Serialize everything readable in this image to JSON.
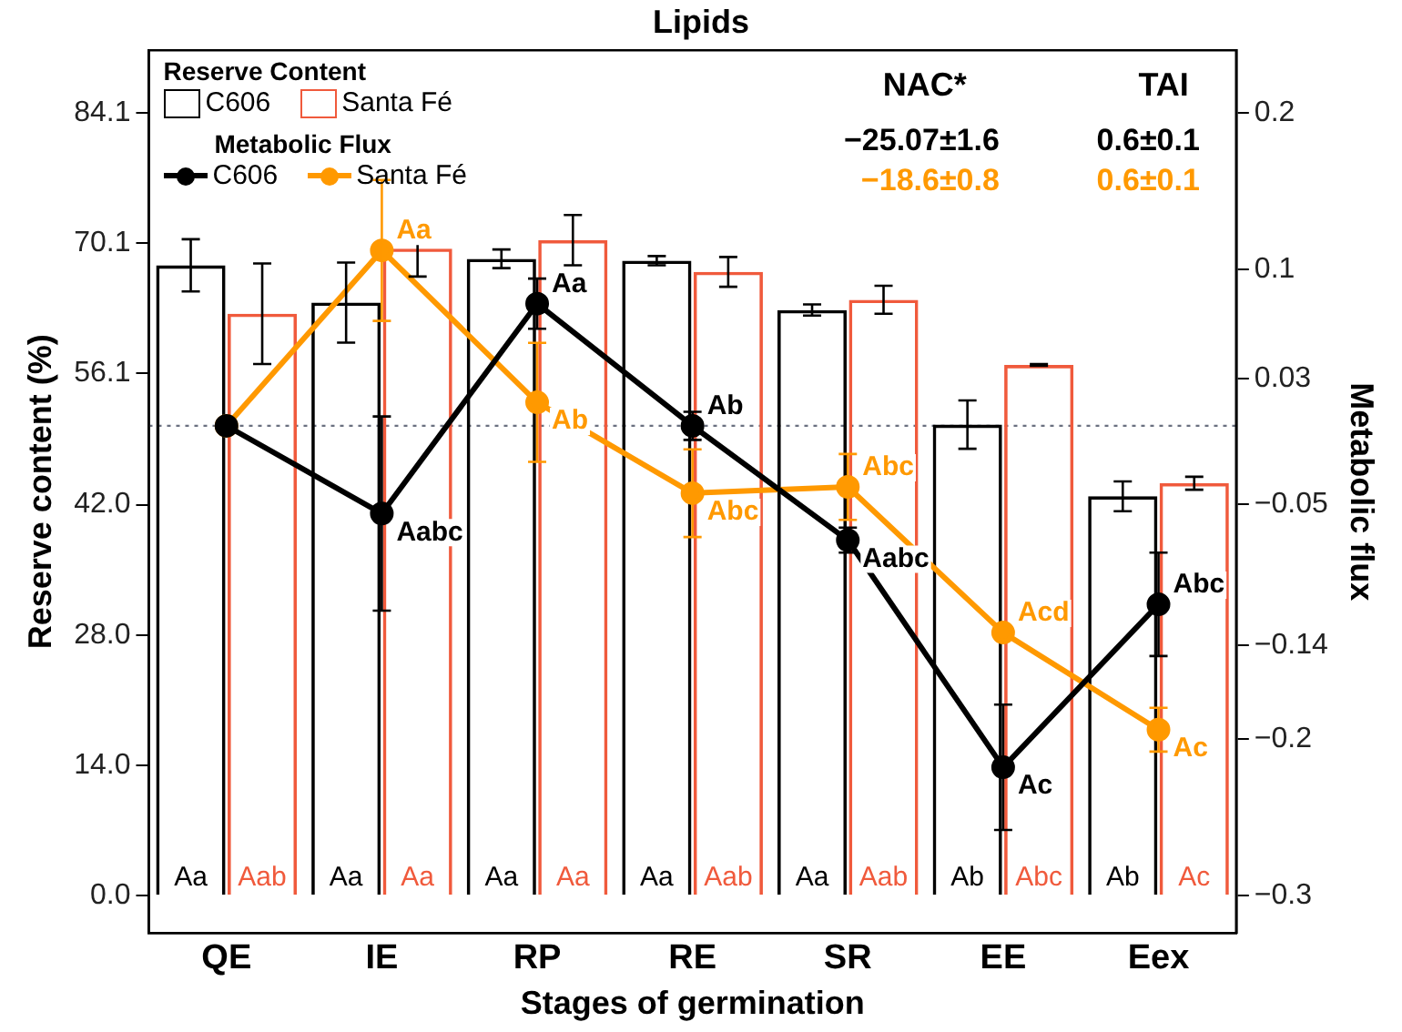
{
  "chart_data": {
    "type": "bar",
    "title": "Lipids",
    "xlabel": "Stages of germination",
    "ylabel": "Reserve content (%)",
    "y2label": "Metabolic flux",
    "legend_title": "Reserve Content",
    "categories": [
      "QE",
      "IE",
      "RP",
      "RE",
      "SR",
      "EE",
      "Eex"
    ],
    "series": [
      {
        "name": "C606",
        "color": "#000000",
        "values": [
          67.7,
          63.7,
          68.4,
          68.2,
          62.9,
          50.6,
          42.9
        ],
        "errors": [
          2.8,
          4.3,
          1.0,
          0.5,
          0.6,
          2.6,
          1.6
        ],
        "value_labels": [
          "Aa",
          "Aa",
          "Aa",
          "Aa",
          "Aa",
          "Ab",
          "Ab"
        ]
      },
      {
        "name": "Santa Fé",
        "color": "#f05a3c",
        "values": [
          62.5,
          69.5,
          70.4,
          67.0,
          64.0,
          57.0,
          44.3
        ],
        "errors": [
          5.4,
          3.0,
          2.7,
          1.6,
          1.5,
          0.1,
          0.7
        ],
        "value_labels": [
          "Aab",
          "Aa",
          "Aa",
          "Aab",
          "Aab",
          "Abc",
          "Ac"
        ]
      },
      {
        "name": "C606",
        "type": "line",
        "axis": "y2",
        "color": "#000000",
        "values": [
          0.0,
          -0.056,
          0.078,
          0.0,
          -0.073,
          -0.218,
          -0.114
        ],
        "errors": [
          null,
          0.062,
          0.016,
          0.009,
          0.008,
          0.04,
          0.033
        ],
        "value_labels": [
          null,
          "Aabc",
          "Aa",
          "Ab",
          "Aabc",
          "Ac",
          "Abc"
        ]
      },
      {
        "name": "Santa Fé",
        "type": "line",
        "axis": "y2",
        "color": "#ff9900",
        "values": [
          0.0,
          0.112,
          0.015,
          -0.043,
          -0.039,
          -0.132,
          -0.194
        ],
        "errors": [
          null,
          0.045,
          0.038,
          0.028,
          0.021,
          null,
          0.014
        ],
        "value_labels": [
          null,
          "Aa",
          "Ab",
          "Abc",
          "Abc",
          "Acd",
          "Ac"
        ]
      }
    ],
    "ylim": [
      -4,
      90.8
    ],
    "yticks": [
      {
        "value": 0,
        "label": "0.0"
      },
      {
        "value": 14,
        "label": "14.0"
      },
      {
        "value": 28,
        "label": "28.0"
      },
      {
        "value": 42,
        "label": "42.0"
      },
      56.1,
      70.1,
      84.1
    ],
    "y2lim": [
      -0.3238,
      0.2398
    ],
    "y2ticks": [
      {
        "value": -0.3,
        "label": "−0.3"
      },
      {
        "value": -0.2,
        "label": "−0.2"
      },
      {
        "value": -0.14,
        "label": "−0.14"
      },
      {
        "value": -0.05,
        "label": "−0.05"
      },
      0.03,
      0.1,
      0.2
    ],
    "ref_lines": [
      {
        "axis": "y2",
        "value": 0,
        "color": "#6a7080",
        "line_style": "dotted"
      }
    ],
    "annotations": [
      "Metabolic Flux",
      "NAC*",
      "TAI",
      "−25.07±1.6",
      "0.6±0.1",
      "−18.6±0.8",
      "0.6±0.1"
    ],
    "legend": "top left",
    "marker": "circle",
    "line_style": "solid",
    "grid": false
  }
}
